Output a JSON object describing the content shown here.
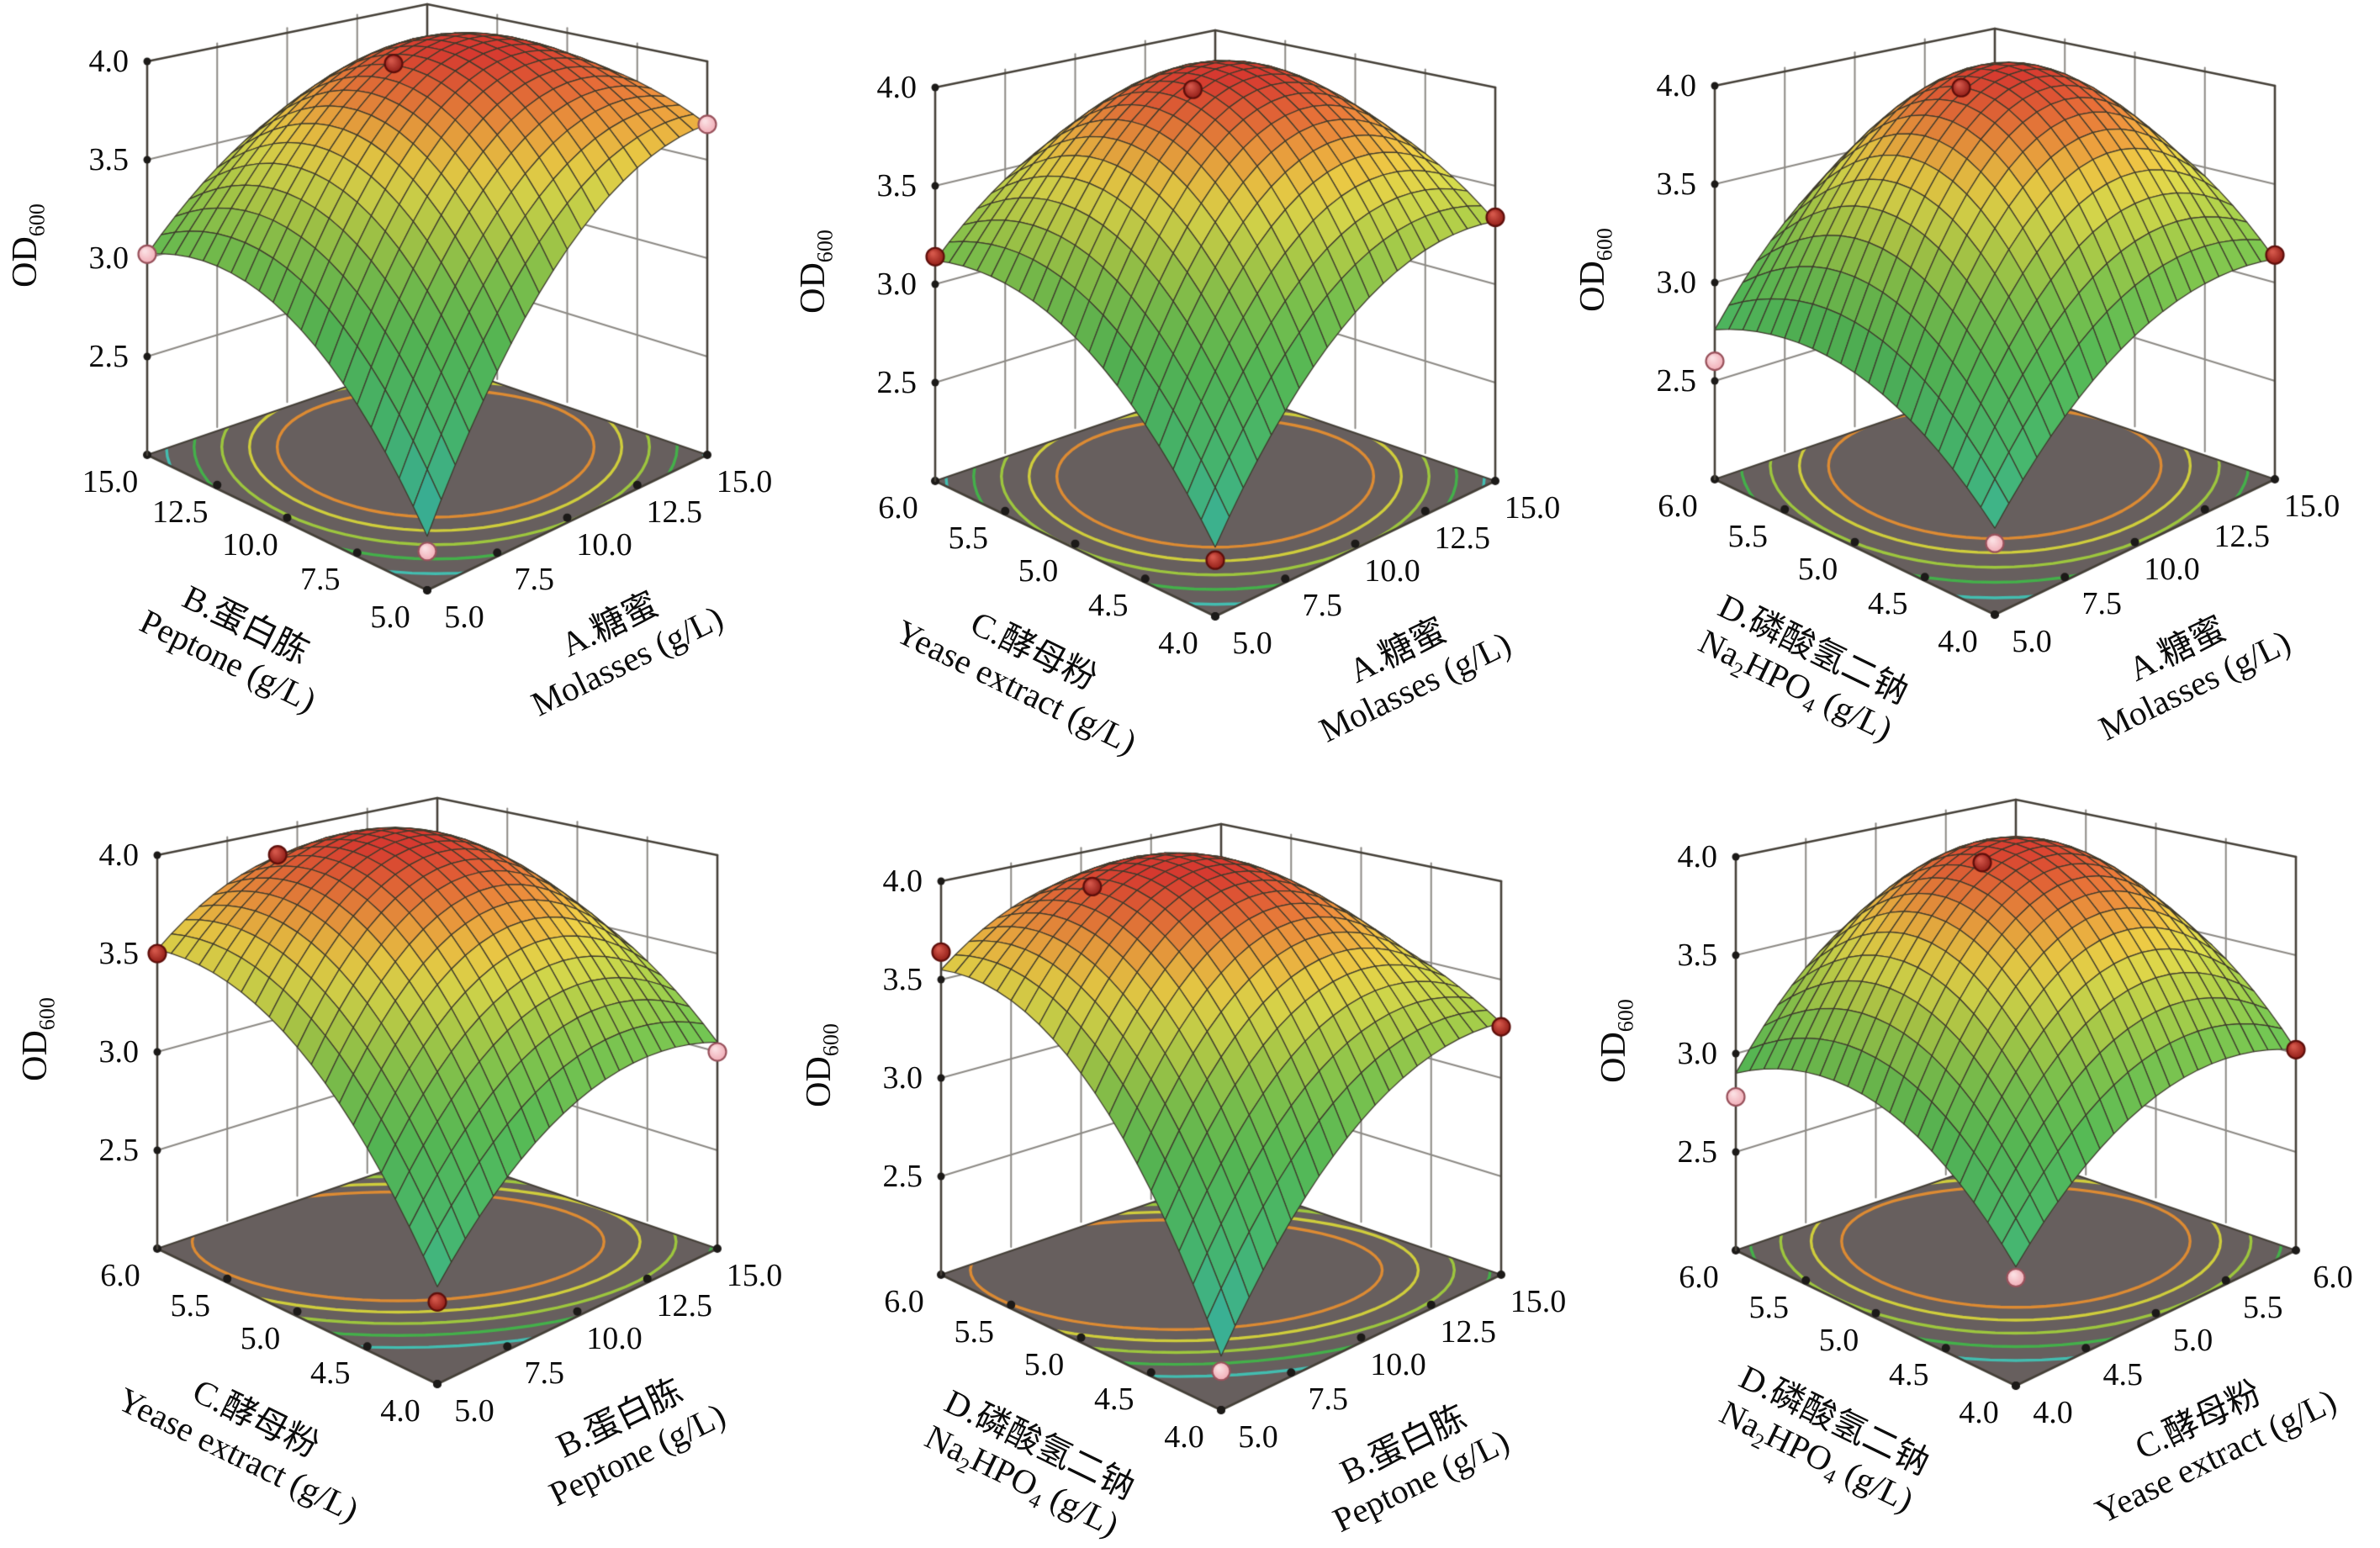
{
  "chart_data": {
    "type": "surface",
    "grid": {
      "rows": 2,
      "cols": 3
    },
    "z_axis": {
      "title_parts": [
        [
          "OD"
        ],
        [
          "600",
          "sub"
        ]
      ],
      "ticks": [
        "4.0",
        "3.5",
        "3.0",
        "2.5"
      ],
      "tick_values": [
        4.0,
        3.5,
        3.0,
        2.5
      ],
      "floor_value": 2.0,
      "top_value": 4.0
    },
    "style": {
      "background": "#ffffff",
      "wall_color": "#ffffff",
      "floor_color": "#675f5e",
      "frame_color": "#454038",
      "wall_grid_color": "#8d8a85",
      "mesh_line_color": "#3e3a2c",
      "tick_dot_color": "#1c1a18",
      "surface_colormap": [
        [
          2.1,
          "#2fb3b6"
        ],
        [
          2.4,
          "#3fbc9a"
        ],
        [
          2.65,
          "#4abf72"
        ],
        [
          2.95,
          "#58bf58"
        ],
        [
          3.18,
          "#7fc64f"
        ],
        [
          3.35,
          "#aece49"
        ],
        [
          3.5,
          "#d8d84b"
        ],
        [
          3.62,
          "#eccb45"
        ],
        [
          3.74,
          "#eda03e"
        ],
        [
          3.86,
          "#e66f38"
        ],
        [
          4.0,
          "#d83a30"
        ]
      ],
      "contour_ring_colors": [
        "#dd8b33",
        "#cfcd3c",
        "#9dc63e",
        "#44b04a",
        "#43bdb0"
      ],
      "contour_ring_radii": [
        0.4,
        0.47,
        0.54,
        0.61,
        0.68
      ],
      "point_colors": {
        "dark": {
          "center": "#d4574a",
          "edge": "#8e1a14",
          "stroke": "#5e0f0b"
        },
        "pink": {
          "center": "#fbdfe2",
          "edge": "#f0aab4",
          "stroke": "#99525c"
        }
      }
    },
    "plots": [
      {
        "position": "row1-col1",
        "origin": [
          0,
          2
        ],
        "left_axis": {
          "factor": "B",
          "title_parts": [
            [
              "B.蛋白胨"
            ]
          ],
          "unit_parts": [
            [
              "Peptone (g/L)"
            ]
          ],
          "ticks": [
            "15.0",
            "12.5",
            "10.0",
            "7.5",
            "5.0"
          ]
        },
        "right_axis": {
          "factor": "A",
          "title_parts": [
            [
              "A.糖蜜"
            ]
          ],
          "unit_parts": [
            [
              "Molasses (g/L)"
            ]
          ],
          "ticks": [
            "5.0",
            "7.5",
            "10.0",
            "12.5",
            "15.0"
          ]
        },
        "od600_surface": {
          "control_grid": [
            [
              2.25,
              3.3,
              3.68
            ],
            [
              2.98,
              3.93,
              3.85
            ],
            [
              3.02,
              3.58,
              3.72
            ]
          ]
        },
        "design_points": [
          {
            "x": 0,
            "y": 1,
            "od600": 3.02,
            "color": "pink"
          },
          {
            "x": 1,
            "y": 0,
            "od600": 3.68,
            "color": "pink"
          },
          {
            "x": 0,
            "y": 0,
            "od600": 2.18,
            "color": "pink"
          },
          {
            "x": 0.6,
            "y": 0.72,
            "od600": 3.87,
            "color": "dark"
          }
        ],
        "contours": {
          "center": [
            0.55,
            0.52
          ],
          "scale": [
            1.0,
            1.0
          ]
        }
      },
      {
        "position": "row1-col2",
        "origin": [
          937,
          33
        ],
        "left_axis": {
          "factor": "C",
          "title_parts": [
            [
              "C.酵母粉"
            ]
          ],
          "unit_parts": [
            [
              "Yease extract (g/L)"
            ]
          ],
          "ticks": [
            "6.0",
            "5.5",
            "5.0",
            "4.5",
            "4.0"
          ]
        },
        "right_axis": {
          "factor": "A",
          "title_parts": [
            [
              "A.糖蜜"
            ]
          ],
          "unit_parts": [
            [
              "Molasses (g/L)"
            ]
          ],
          "ticks": [
            "5.0",
            "7.5",
            "10.0",
            "12.5",
            "15.0"
          ]
        },
        "od600_surface": {
          "control_grid": [
            [
              2.32,
              3.12,
              3.32
            ],
            [
              3.0,
              3.95,
              3.7
            ],
            [
              3.12,
              3.62,
              3.66
            ]
          ]
        },
        "design_points": [
          {
            "x": 0,
            "y": 1,
            "od600": 3.14,
            "color": "dark"
          },
          {
            "x": 1,
            "y": 0,
            "od600": 3.34,
            "color": "dark"
          },
          {
            "x": 0,
            "y": 0,
            "od600": 2.26,
            "color": "dark"
          },
          {
            "x": 0.58,
            "y": 0.66,
            "od600": 3.9,
            "color": "dark"
          }
        ],
        "contours": {
          "center": [
            0.52,
            0.52
          ],
          "scale": [
            1.0,
            1.0
          ]
        }
      },
      {
        "position": "row1-col3",
        "origin": [
          1864,
          31
        ],
        "left_axis": {
          "factor": "D",
          "title_parts": [
            [
              "D.磷酸氢二钠"
            ]
          ],
          "unit_parts": [
            [
              "Na"
            ],
            [
              "2",
              "sub"
            ],
            [
              "HPO"
            ],
            [
              "4",
              "sub"
            ],
            [
              " (g/L)"
            ]
          ],
          "ticks": [
            "6.0",
            "5.5",
            "5.0",
            "4.5",
            "4.0"
          ]
        },
        "right_axis": {
          "factor": "A",
          "title_parts": [
            [
              "A.糖蜜"
            ]
          ],
          "unit_parts": [
            [
              "Molasses (g/L)"
            ]
          ],
          "ticks": [
            "5.0",
            "7.5",
            "10.0",
            "12.5",
            "15.0"
          ]
        },
        "od600_surface": {
          "control_grid": [
            [
              2.4,
              3.0,
              3.12
            ],
            [
              2.82,
              3.93,
              3.62
            ],
            [
              2.76,
              3.48,
              3.6
            ]
          ]
        },
        "design_points": [
          {
            "x": 0,
            "y": 1,
            "od600": 2.6,
            "color": "pink"
          },
          {
            "x": 1,
            "y": 0,
            "od600": 3.14,
            "color": "dark"
          },
          {
            "x": 0,
            "y": 0,
            "od600": 2.33,
            "color": "pink"
          },
          {
            "x": 0.56,
            "y": 0.68,
            "od600": 3.9,
            "color": "dark"
          }
        ],
        "contours": {
          "center": [
            0.56,
            0.56
          ],
          "scale": [
            1.05,
            1.05
          ]
        }
      },
      {
        "position": "row2-col1",
        "origin": [
          12,
          946
        ],
        "left_axis": {
          "factor": "C",
          "title_parts": [
            [
              "C.酵母粉"
            ]
          ],
          "unit_parts": [
            [
              "Yease extract (g/L)"
            ]
          ],
          "ticks": [
            "6.0",
            "5.5",
            "5.0",
            "4.5",
            "4.0"
          ]
        },
        "right_axis": {
          "factor": "B",
          "title_parts": [
            [
              "B.蛋白胨"
            ]
          ],
          "unit_parts": [
            [
              "Peptone (g/L)"
            ]
          ],
          "ticks": [
            "5.0",
            "7.5",
            "10.0",
            "12.5",
            "15.0"
          ]
        },
        "od600_surface": {
          "control_grid": [
            [
              2.45,
              3.02,
              3.05
            ],
            [
              3.28,
              3.93,
              3.55
            ],
            [
              3.52,
              3.85,
              3.62
            ]
          ]
        },
        "design_points": [
          {
            "x": 0,
            "y": 1,
            "od600": 3.5,
            "color": "dark"
          },
          {
            "x": 1,
            "y": 0,
            "od600": 3.0,
            "color": "pink"
          },
          {
            "x": 0,
            "y": 0,
            "od600": 2.38,
            "color": "dark"
          },
          {
            "x": 0.38,
            "y": 0.95,
            "od600": 3.88,
            "color": "dark"
          }
        ],
        "contours": {
          "center": [
            0.46,
            0.6
          ],
          "scale": [
            1.3,
            0.85
          ]
        }
      },
      {
        "position": "row2-col2",
        "origin": [
          944,
          977
        ],
        "left_axis": {
          "factor": "D",
          "title_parts": [
            [
              "D.磷酸氢二钠"
            ]
          ],
          "unit_parts": [
            [
              "Na"
            ],
            [
              "2",
              "sub"
            ],
            [
              "HPO"
            ],
            [
              "4",
              "sub"
            ],
            [
              " (g/L)"
            ]
          ],
          "ticks": [
            "6.0",
            "5.5",
            "5.0",
            "4.5",
            "4.0"
          ]
        },
        "right_axis": {
          "factor": "B",
          "title_parts": [
            [
              "B.蛋白胨"
            ]
          ],
          "unit_parts": [
            [
              "Peptone (g/L)"
            ]
          ],
          "ticks": [
            "5.0",
            "7.5",
            "10.0",
            "12.5",
            "15.0"
          ]
        },
        "od600_surface": {
          "control_grid": [
            [
              2.25,
              3.05,
              3.28
            ],
            [
              3.28,
              3.95,
              3.58
            ],
            [
              3.55,
              3.85,
              3.62
            ]
          ]
        },
        "design_points": [
          {
            "x": 0,
            "y": 1,
            "od600": 3.64,
            "color": "dark"
          },
          {
            "x": 1,
            "y": 0,
            "od600": 3.26,
            "color": "dark"
          },
          {
            "x": 0,
            "y": 0,
            "od600": 2.18,
            "color": "pink"
          },
          {
            "x": 0.42,
            "y": 0.88,
            "od600": 3.86,
            "color": "dark"
          }
        ],
        "contours": {
          "center": [
            0.44,
            0.6
          ],
          "scale": [
            1.3,
            0.85
          ]
        }
      },
      {
        "position": "row2-col3",
        "origin": [
          1889,
          948
        ],
        "left_axis": {
          "factor": "D",
          "title_parts": [
            [
              "D.磷酸氢二钠"
            ]
          ],
          "unit_parts": [
            [
              "Na"
            ],
            [
              "2",
              "sub"
            ],
            [
              "HPO"
            ],
            [
              "4",
              "sub"
            ],
            [
              " (g/L)"
            ]
          ],
          "ticks": [
            "6.0",
            "5.5",
            "5.0",
            "4.5",
            "4.0"
          ]
        },
        "right_axis": {
          "factor": "C",
          "title_parts": [
            [
              "C.酵母粉"
            ]
          ],
          "unit_parts": [
            [
              "Yease extract (g/L)"
            ]
          ],
          "ticks": [
            "4.0",
            "4.5",
            "5.0",
            "5.5",
            "6.0"
          ]
        },
        "od600_surface": {
          "control_grid": [
            [
              2.55,
              3.05,
              3.02
            ],
            [
              3.02,
              3.93,
              3.58
            ],
            [
              2.9,
              3.58,
              3.55
            ]
          ]
        },
        "design_points": [
          {
            "x": 0,
            "y": 1,
            "od600": 2.78,
            "color": "pink"
          },
          {
            "x": 1,
            "y": 0,
            "od600": 3.02,
            "color": "dark"
          },
          {
            "x": 0,
            "y": 0,
            "od600": 2.5,
            "color": "pink"
          },
          {
            "x": 0.56,
            "y": 0.68,
            "od600": 3.88,
            "color": "dark"
          }
        ],
        "contours": {
          "center": [
            0.54,
            0.54
          ],
          "scale": [
            1.1,
            0.95
          ]
        }
      }
    ]
  }
}
